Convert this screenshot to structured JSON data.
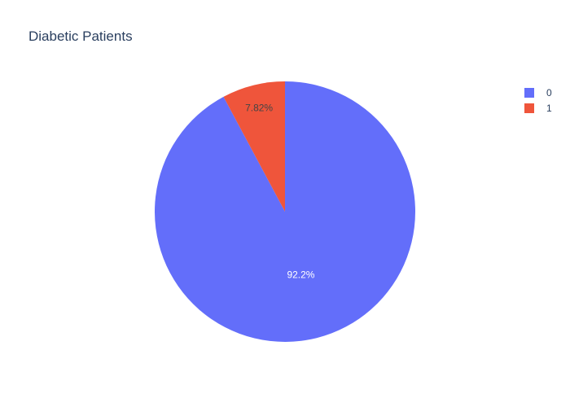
{
  "chart_data": {
    "type": "pie",
    "title": "Diabetic Patients",
    "categories": [
      "0",
      "1"
    ],
    "values": [
      92.18,
      7.82
    ],
    "labels": [
      "92.2%",
      "7.82%"
    ],
    "colors": [
      "#636efa",
      "#ef553b"
    ],
    "label_colors": [
      "#ffffff",
      "#444444"
    ],
    "legend": {
      "placement": "top-right",
      "entries": [
        "0",
        "1"
      ]
    },
    "start_angle_deg": 90,
    "direction": "clockwise",
    "sort": "descending-first-at-top"
  }
}
